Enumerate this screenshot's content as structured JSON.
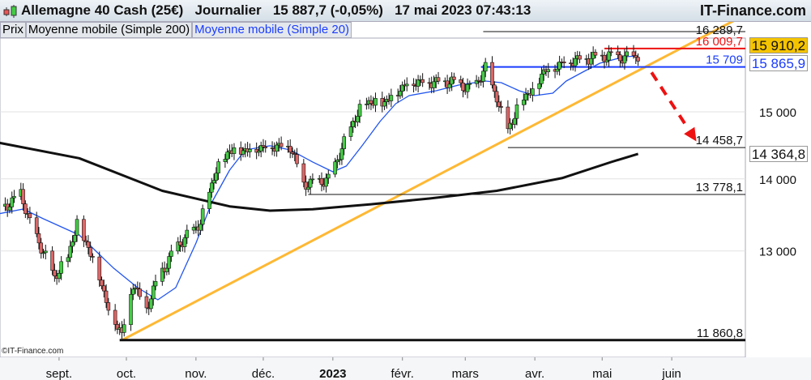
{
  "header": {
    "title": "Allemagne 40 Cash (25€)   Journalier   15 887,7 (-0,05%)   17 mai 2023 07:43:13",
    "brand": "IT-Finance.com"
  },
  "legend": {
    "price": "Prix",
    "ma200": "Moyenne mobile (Simple 200)",
    "ma20": "Moyenne mobile (Simple 20)"
  },
  "copyright": "©IT-Finance.com",
  "price_boxes": [
    {
      "label": "15 910,2",
      "value": 15910.2,
      "bg": "#f5c400",
      "color": "#111111"
    },
    {
      "label": "15 865,9",
      "value": 15865.9,
      "bg": "#ffffff",
      "color": "#1a3cff"
    },
    {
      "label": "14 364,8",
      "value": 14364.8,
      "bg": "#ffffff",
      "color": "#111111"
    }
  ],
  "colors": {
    "up": "#44cc44",
    "down": "#dd6666",
    "ma20": "#2255ee",
    "ma200": "#111111",
    "trend": "#ffb833",
    "arrow": "#ee1111"
  },
  "chart_data": {
    "type": "candlestick",
    "yscale": "log",
    "ylim": [
      11700,
      16400
    ],
    "grid": true,
    "y_ticks": [
      {
        "value": 15000,
        "label": "15 000"
      },
      {
        "value": 14000,
        "label": "14 000"
      },
      {
        "value": 13000,
        "label": "13 000"
      }
    ],
    "x_ticks": [
      {
        "date": "2022-09-01",
        "label": "sept."
      },
      {
        "date": "2022-10-01",
        "label": "oct."
      },
      {
        "date": "2022-11-01",
        "label": "nov."
      },
      {
        "date": "2022-12-01",
        "label": "déc."
      },
      {
        "date": "2023-01-01",
        "label": "2023",
        "bold": true
      },
      {
        "date": "2023-02-01",
        "label": "févr."
      },
      {
        "date": "2023-03-01",
        "label": "mars"
      },
      {
        "date": "2023-04-01",
        "label": "avr."
      },
      {
        "date": "2023-05-01",
        "label": "mai"
      },
      {
        "date": "2023-06-01",
        "label": "juin"
      }
    ],
    "price_path": [
      [
        "2022-08-08",
        13610
      ],
      [
        "2022-08-15",
        13800
      ],
      [
        "2022-08-19",
        13390
      ],
      [
        "2022-08-30",
        12660
      ],
      [
        "2022-09-05",
        12930
      ],
      [
        "2022-09-09",
        13390
      ],
      [
        "2022-09-18",
        12780
      ],
      [
        "2022-09-23",
        12250
      ],
      [
        "2022-09-29",
        11950
      ],
      [
        "2022-10-04",
        12580
      ],
      [
        "2022-10-10",
        12250
      ],
      [
        "2022-10-14",
        12580
      ],
      [
        "2022-10-23",
        13050
      ],
      [
        "2022-11-03",
        13390
      ],
      [
        "2022-11-10",
        14140
      ],
      [
        "2022-11-16",
        14430
      ],
      [
        "2022-11-23",
        14430
      ],
      [
        "2022-12-04",
        14490
      ],
      [
        "2022-12-13",
        14490
      ],
      [
        "2022-12-19",
        13930
      ],
      [
        "2022-12-30",
        13990
      ],
      [
        "2023-01-04",
        14370
      ],
      [
        "2023-01-10",
        14850
      ],
      [
        "2023-01-15",
        15160
      ],
      [
        "2023-01-24",
        15160
      ],
      [
        "2023-02-04",
        15480
      ],
      [
        "2023-02-14",
        15480
      ],
      [
        "2023-02-23",
        15480
      ],
      [
        "2023-03-04",
        15350
      ],
      [
        "2023-03-10",
        15680
      ],
      [
        "2023-03-15",
        15230
      ],
      [
        "2023-03-19",
        14730
      ],
      [
        "2023-03-22",
        14850
      ],
      [
        "2023-03-26",
        15230
      ],
      [
        "2023-04-01",
        15350
      ],
      [
        "2023-04-04",
        15620
      ],
      [
        "2023-04-15",
        15810
      ],
      [
        "2023-04-26",
        15870
      ],
      [
        "2023-05-06",
        15890
      ],
      [
        "2023-05-11",
        15850
      ],
      [
        "2023-05-17",
        15888
      ]
    ],
    "series": [
      {
        "name": "Moyenne mobile (Simple 20)",
        "points": [
          [
            "2022-08-03",
            13494
          ],
          [
            "2022-08-16",
            13572
          ],
          [
            "2022-08-25",
            13437
          ],
          [
            "2022-09-10",
            13215
          ],
          [
            "2022-09-25",
            12780
          ],
          [
            "2022-10-06",
            12519
          ],
          [
            "2022-10-15",
            12363
          ],
          [
            "2022-10-23",
            12519
          ],
          [
            "2022-11-01",
            13106
          ],
          [
            "2022-11-08",
            13663
          ],
          [
            "2022-11-16",
            14127
          ],
          [
            "2022-11-23",
            14424
          ],
          [
            "2022-12-04",
            14485
          ],
          [
            "2022-12-13",
            14424
          ],
          [
            "2022-12-23",
            14246
          ],
          [
            "2023-01-01",
            14103
          ],
          [
            "2023-01-07",
            14187
          ],
          [
            "2023-01-14",
            14485
          ],
          [
            "2023-01-22",
            14851
          ],
          [
            "2023-01-29",
            15125
          ],
          [
            "2023-02-04",
            15252
          ],
          [
            "2023-02-16",
            15328
          ],
          [
            "2023-02-26",
            15418
          ],
          [
            "2023-03-10",
            15483
          ],
          [
            "2023-03-17",
            15457
          ],
          [
            "2023-03-25",
            15328
          ],
          [
            "2023-04-01",
            15252
          ],
          [
            "2023-04-09",
            15290
          ],
          [
            "2023-04-15",
            15483
          ],
          [
            "2023-04-23",
            15638
          ],
          [
            "2023-04-30",
            15769
          ],
          [
            "2023-05-11",
            15874
          ],
          [
            "2023-05-17",
            15887
          ]
        ]
      },
      {
        "name": "Moyenne mobile (Simple 200)",
        "points": [
          [
            "2022-08-03",
            14545
          ],
          [
            "2022-09-10",
            14300
          ],
          [
            "2022-10-17",
            13830
          ],
          [
            "2022-11-16",
            13610
          ],
          [
            "2022-12-04",
            13550
          ],
          [
            "2022-12-23",
            13570
          ],
          [
            "2023-01-18",
            13640
          ],
          [
            "2023-02-13",
            13720
          ],
          [
            "2023-03-15",
            13830
          ],
          [
            "2023-04-13",
            14010
          ],
          [
            "2023-05-05",
            14245
          ],
          [
            "2023-05-17",
            14365
          ]
        ]
      }
    ],
    "levels": [
      {
        "value": 16289.7,
        "label": "16 289,7",
        "from": "2023-03-09",
        "color": "#111111"
      },
      {
        "value": 16009.7,
        "label": "16 009,7",
        "from": "2023-05-02",
        "color": "#ee1111"
      },
      {
        "value": 15709,
        "label": "15 709",
        "from": "2023-03-08",
        "color": "#1a3cff"
      },
      {
        "value": 14458.7,
        "label": "14 458,7",
        "from": "2023-03-20",
        "color": "#111111"
      },
      {
        "value": 13778.1,
        "label": "13 778,1",
        "from": "2022-12-21",
        "color": "#111111"
      },
      {
        "value": 11860.8,
        "label": "11 860,8",
        "from": "2022-09-28",
        "color": "#111111"
      }
    ],
    "trendline": {
      "from": [
        "2022-09-29",
        11860.8
      ],
      "to": [
        "2023-06-30",
        16500
      ]
    },
    "arrow": {
      "from": [
        "2023-05-23",
        15620
      ],
      "to": [
        "2023-06-12",
        14550
      ]
    }
  }
}
